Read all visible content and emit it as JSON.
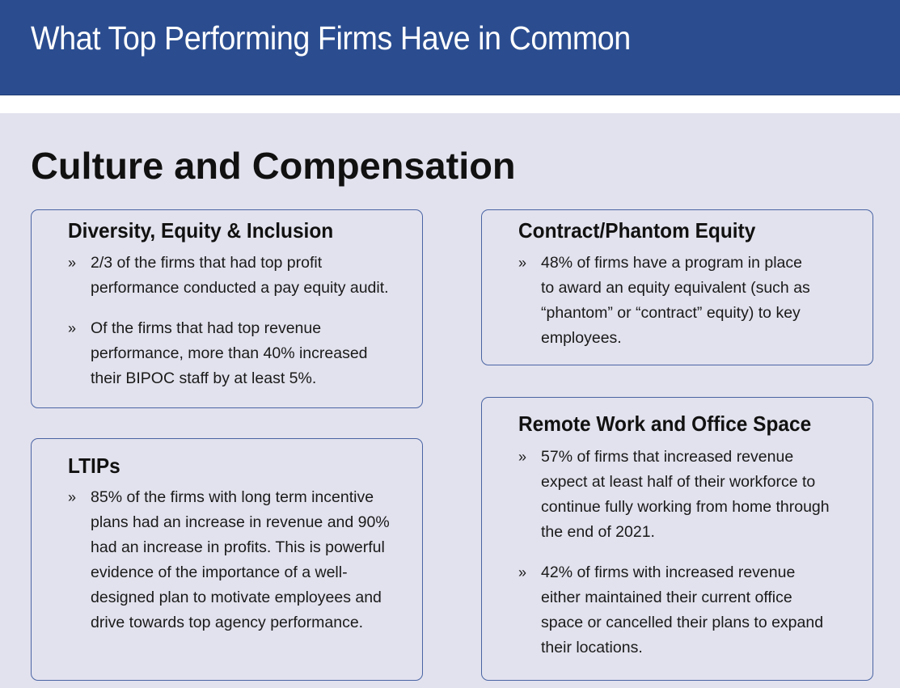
{
  "header": {
    "title": "What Top Performing Firms Have in Common"
  },
  "section": {
    "title": "Culture and Compensation"
  },
  "cards": {
    "dei": {
      "title": "Diversity, Equity & Inclusion",
      "bullets": [
        {
          "marker": "»",
          "text": "2/3 of the firms that had top profit\nperformance conducted a pay equity audit."
        },
        {
          "marker": "»",
          "text": "Of the firms that had top revenue\nperformance, more than 40% increased\ntheir BIPOC staff by at least 5%."
        }
      ]
    },
    "equity": {
      "title": "Contract/Phantom Equity",
      "bullets": [
        {
          "marker": "»",
          "text": "48% of firms have a program in place\nto award an equity equivalent (such as\n“phantom” or “contract” equity) to key\nemployees."
        }
      ]
    },
    "ltips": {
      "title": "LTIPs",
      "bullets": [
        {
          "marker": "»",
          "text": "85% of the firms with long term incentive\nplans had an increase in revenue and 90%\nhad an increase in profits. This is powerful\nevidence of the importance of a well-\ndesigned plan to motivate employees and\ndrive towards top agency performance."
        }
      ]
    },
    "remote": {
      "title": "Remote Work and Office Space",
      "bullets": [
        {
          "marker": "»",
          "text": "57% of firms that increased revenue\nexpect at least half of their workforce to\ncontinue fully working from home through\nthe end of 2021."
        },
        {
          "marker": "»",
          "text": "42% of firms with increased revenue\neither maintained their current office\nspace or cancelled their plans to expand\ntheir locations."
        }
      ]
    }
  }
}
